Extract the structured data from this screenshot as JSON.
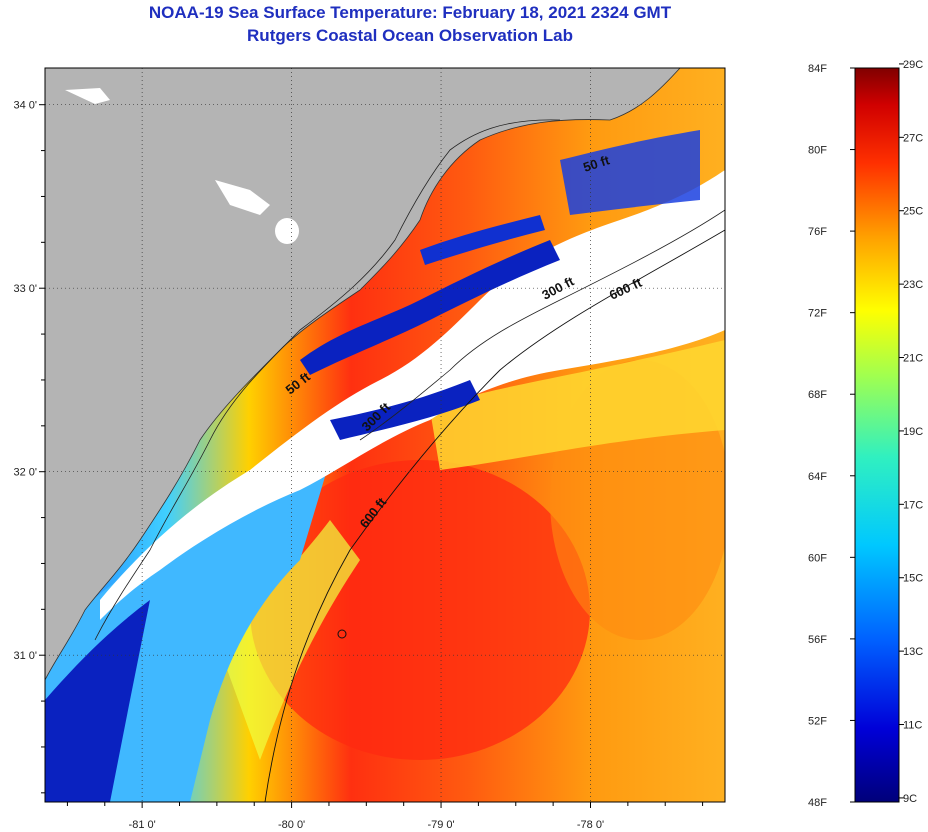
{
  "header": {
    "title": "NOAA-19 Sea Surface Temperature:  February 18, 2021 2324 GMT",
    "subtitle": "Rutgers Coastal Ocean Observation Lab"
  },
  "map": {
    "lat_labels": [
      "34 0'",
      "33 0'",
      "32 0'",
      "31 0'"
    ],
    "lon_labels": [
      "-81 0'",
      "-80 0'",
      "-79 0'",
      "-78 0'"
    ],
    "lat_values": [
      34,
      33,
      32,
      31
    ],
    "lon_values": [
      -81,
      -80,
      -79,
      -78
    ],
    "lat_range": [
      30.2,
      34.2
    ],
    "lon_range": [
      -81.65,
      -77.1
    ],
    "grid": "dotted",
    "contour_labels": [
      "50 ft",
      "50 ft",
      "300 ft",
      "600 ft",
      "300 ft",
      "600 ft"
    ],
    "colors": {
      "land": "#b4b4b4",
      "cloud": "#ffffff",
      "cold": "#0a1aa0",
      "warm": "#f02a10"
    }
  },
  "colorbar": {
    "f_labels": [
      "84F",
      "80F",
      "76F",
      "72F",
      "68F",
      "64F",
      "60F",
      "56F",
      "52F",
      "48F"
    ],
    "c_labels": [
      "29C",
      "27C",
      "25C",
      "23C",
      "21C",
      "19C",
      "17C",
      "15C",
      "13C",
      "11C",
      "9C"
    ],
    "f_values": [
      84,
      80,
      76,
      72,
      68,
      64,
      60,
      56,
      52,
      48
    ],
    "c_values": [
      29,
      27,
      25,
      23,
      21,
      19,
      17,
      15,
      13,
      11,
      9
    ],
    "range_f": [
      48,
      84
    ]
  }
}
